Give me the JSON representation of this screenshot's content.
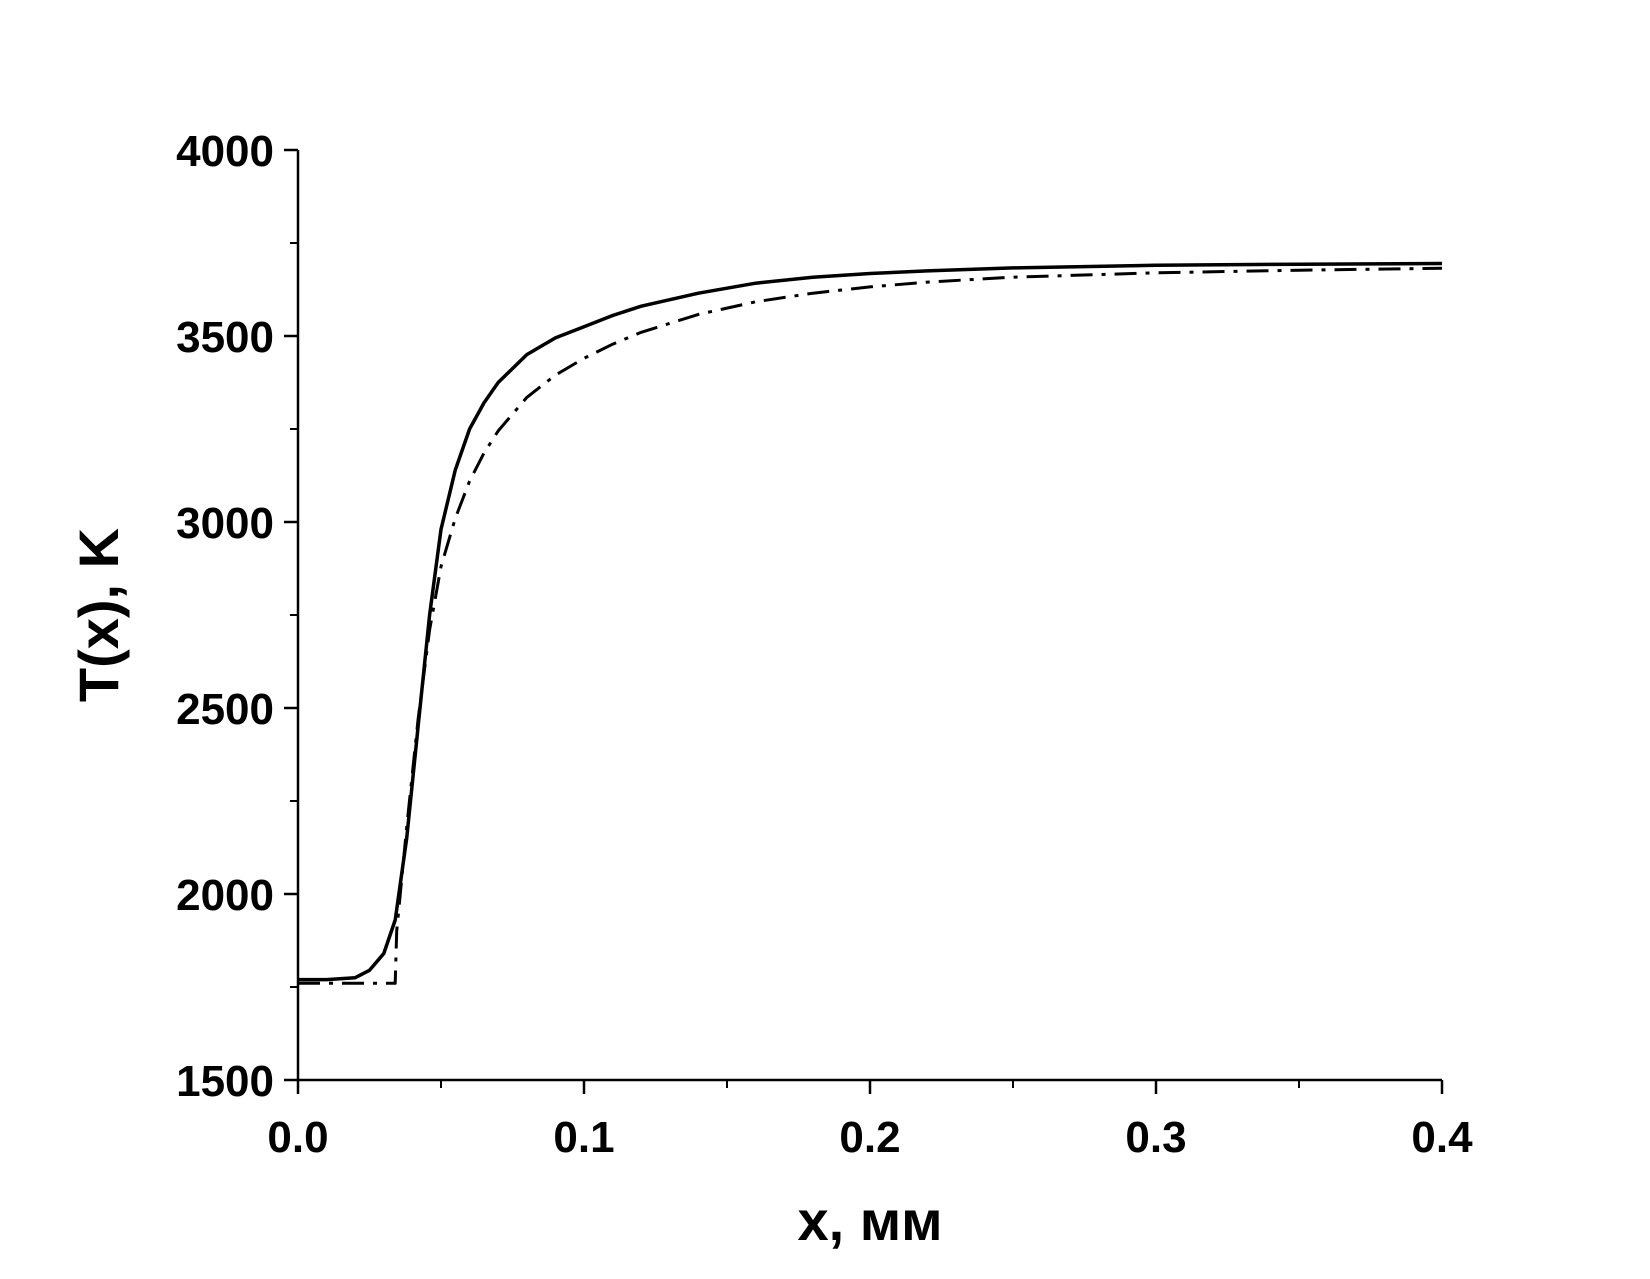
{
  "chart_data": {
    "type": "line",
    "title": "",
    "xlabel": "x, мм",
    "ylabel": "T(x), K",
    "xlim": [
      0.0,
      0.4
    ],
    "ylim": [
      1500,
      4000
    ],
    "x_ticks": [
      "0.0",
      "0.1",
      "0.2",
      "0.3",
      "0.4"
    ],
    "y_ticks": [
      "1500",
      "2000",
      "2500",
      "3000",
      "3500",
      "4000"
    ],
    "grid": false,
    "legend": "none",
    "series": [
      {
        "style": "solid",
        "color": "#000000",
        "x": [
          0.0,
          0.01,
          0.02,
          0.025,
          0.03,
          0.034,
          0.038,
          0.042,
          0.046,
          0.05,
          0.055,
          0.06,
          0.065,
          0.07,
          0.08,
          0.09,
          0.1,
          0.11,
          0.12,
          0.14,
          0.16,
          0.18,
          0.2,
          0.22,
          0.25,
          0.3,
          0.35,
          0.4
        ],
        "y": [
          1770,
          1770,
          1775,
          1795,
          1840,
          1930,
          2150,
          2450,
          2750,
          2980,
          3140,
          3250,
          3320,
          3375,
          3450,
          3495,
          3525,
          3555,
          3580,
          3615,
          3642,
          3658,
          3668,
          3675,
          3683,
          3690,
          3693,
          3695
        ]
      },
      {
        "style": "dash-dot",
        "color": "#000000",
        "x": [
          0.0,
          0.02,
          0.034,
          0.0345,
          0.038,
          0.042,
          0.046,
          0.05,
          0.055,
          0.06,
          0.065,
          0.07,
          0.08,
          0.09,
          0.1,
          0.11,
          0.12,
          0.14,
          0.16,
          0.18,
          0.2,
          0.22,
          0.25,
          0.3,
          0.35,
          0.4
        ],
        "y": [
          1760,
          1760,
          1760,
          1900,
          2180,
          2470,
          2710,
          2880,
          3010,
          3110,
          3185,
          3245,
          3335,
          3395,
          3440,
          3478,
          3510,
          3558,
          3592,
          3615,
          3632,
          3645,
          3658,
          3670,
          3677,
          3682
        ]
      }
    ]
  }
}
